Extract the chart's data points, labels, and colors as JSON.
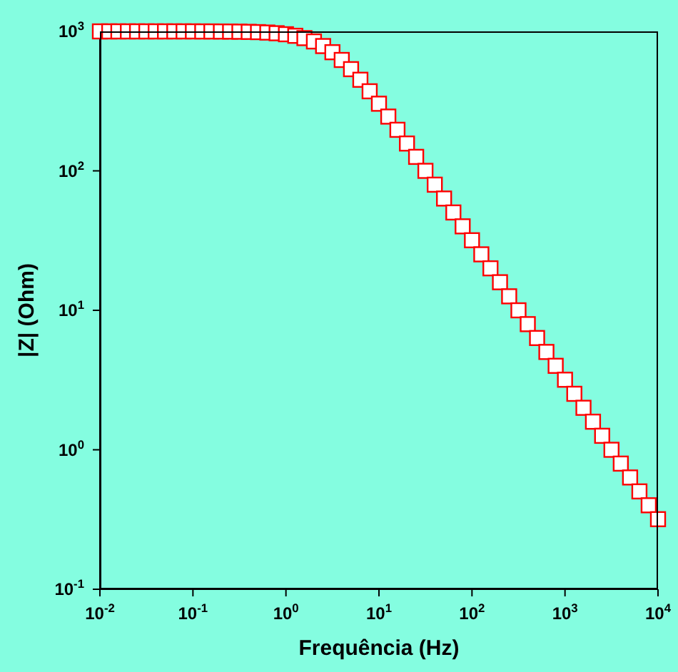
{
  "chart_data": {
    "type": "scatter",
    "xlabel": "Frequência (Hz)",
    "ylabel": "|Z| (Ohm)",
    "log": "xy",
    "marker": "square",
    "xlim": [
      0.01,
      10000
    ],
    "ylim": [
      0.1,
      1000
    ],
    "xticks": [
      {
        "value": 0.01,
        "label": "10$^{-2}$"
      },
      {
        "value": 0.1,
        "label": "10$^{-1}$"
      },
      {
        "value": 1,
        "label": "10$^{0}$"
      },
      {
        "value": 10,
        "label": "10$^{1}$"
      },
      {
        "value": 100,
        "label": "10$^{2}$"
      },
      {
        "value": 1000,
        "label": "10$^{3}$"
      },
      {
        "value": 10000,
        "label": "10$^{4}$"
      }
    ],
    "yticks": [
      {
        "value": 0.1,
        "label": "10$^{-1}$"
      },
      {
        "value": 1,
        "label": "10$^{0}$"
      },
      {
        "value": 10,
        "label": "10$^{1}$"
      },
      {
        "value": 100,
        "label": "10$^{2}$"
      },
      {
        "value": 1000,
        "label": "10$^{3}$"
      }
    ],
    "series": [
      {
        "color": "#ff0000",
        "x": [
          0.01,
          0.0126,
          0.0158,
          0.02,
          0.0251,
          0.0316,
          0.0398,
          0.0501,
          0.0631,
          0.0794,
          0.1,
          0.126,
          0.158,
          0.2,
          0.251,
          0.316,
          0.398,
          0.501,
          0.631,
          0.794,
          1,
          1.26,
          1.58,
          2,
          2.51,
          3.16,
          3.98,
          5.01,
          6.31,
          7.94,
          10,
          12.6,
          15.8,
          20,
          25.1,
          31.6,
          39.8,
          50.1,
          63.1,
          79.4,
          100,
          126,
          158,
          200,
          251,
          316,
          398,
          501,
          631,
          794,
          1000,
          1260,
          1580,
          2000,
          2510,
          3160,
          3980,
          5010,
          6310,
          7940,
          10000
        ],
        "values": [
          1000,
          1000,
          1000,
          1000,
          1000,
          1000,
          1000,
          1000,
          1000,
          1000,
          1000,
          999,
          999,
          998,
          997,
          995,
          992,
          988,
          981,
          970,
          954,
          930,
          895,
          847,
          785,
          709,
          624,
          536,
          450,
          372,
          303,
          245,
          197,
          157,
          126,
          100,
          79.6,
          63.3,
          50.3,
          40.0,
          31.8,
          25.2,
          20.0,
          15.9,
          12.6,
          10.0,
          7.96,
          6.33,
          5.03,
          4.0,
          3.18,
          2.52,
          2.0,
          1.59,
          1.26,
          1.0,
          0.796,
          0.633,
          0.503,
          0.4,
          0.318
        ]
      }
    ]
  }
}
